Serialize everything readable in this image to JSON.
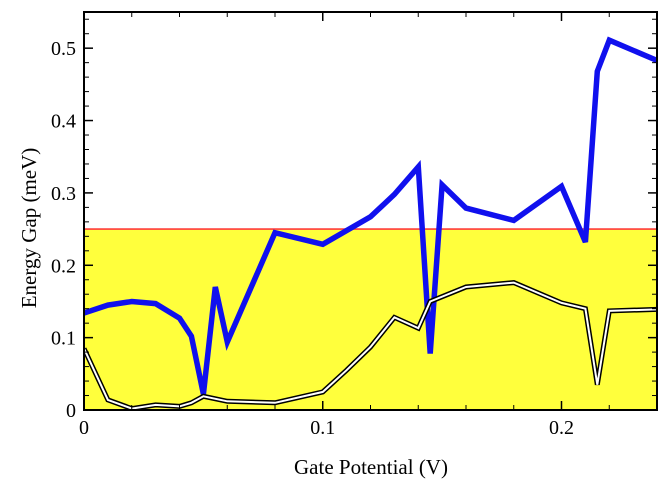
{
  "chart_data": {
    "type": "line",
    "title": "",
    "xlabel": "Gate Potential (V)",
    "ylabel": "Energy Gap (meV)",
    "xlim": [
      0,
      0.24
    ],
    "ylim": [
      0,
      0.55
    ],
    "x_ticks": [
      0,
      0.1,
      0.2
    ],
    "x_tick_labels": [
      "0",
      "0.1",
      "0.2"
    ],
    "y_ticks": [
      0,
      0.1,
      0.2,
      0.3,
      0.4,
      0.5
    ],
    "y_tick_labels": [
      "0",
      "0.1",
      "0.2",
      "0.3",
      "0.4",
      "0.5"
    ],
    "grid": false,
    "threshold": {
      "value": 0.25,
      "line_color": "#ff3b3b",
      "fill_below_color": "#ffff3c"
    },
    "series": [
      {
        "color": "#1010ee",
        "style": "thick",
        "points": [
          [
            0,
            0.134
          ],
          [
            0.01,
            0.145
          ],
          [
            0.02,
            0.15
          ],
          [
            0.03,
            0.147
          ],
          [
            0.04,
            0.127
          ],
          [
            0.045,
            0.102
          ],
          [
            0.05,
            0.022
          ],
          [
            0.055,
            0.17
          ],
          [
            0.06,
            0.094
          ],
          [
            0.08,
            0.245
          ],
          [
            0.1,
            0.229
          ],
          [
            0.12,
            0.267
          ],
          [
            0.13,
            0.298
          ],
          [
            0.14,
            0.336
          ],
          [
            0.145,
            0.078
          ],
          [
            0.15,
            0.311
          ],
          [
            0.16,
            0.279
          ],
          [
            0.18,
            0.262
          ],
          [
            0.2,
            0.309
          ],
          [
            0.21,
            0.232
          ],
          [
            0.215,
            0.468
          ],
          [
            0.22,
            0.511
          ],
          [
            0.24,
            0.483
          ]
        ]
      },
      {
        "color": "#000000",
        "style": "double",
        "points": [
          [
            0,
            0.085
          ],
          [
            0.01,
            0.014
          ],
          [
            0.02,
            0.002
          ],
          [
            0.03,
            0.007
          ],
          [
            0.04,
            0.005
          ],
          [
            0.045,
            0.01
          ],
          [
            0.05,
            0.019
          ],
          [
            0.06,
            0.012
          ],
          [
            0.08,
            0.01
          ],
          [
            0.1,
            0.025
          ],
          [
            0.11,
            0.055
          ],
          [
            0.12,
            0.087
          ],
          [
            0.13,
            0.128
          ],
          [
            0.14,
            0.113
          ],
          [
            0.145,
            0.15
          ],
          [
            0.16,
            0.17
          ],
          [
            0.18,
            0.176
          ],
          [
            0.2,
            0.148
          ],
          [
            0.21,
            0.14
          ],
          [
            0.215,
            0.035
          ],
          [
            0.22,
            0.137
          ],
          [
            0.24,
            0.139
          ]
        ]
      }
    ]
  }
}
